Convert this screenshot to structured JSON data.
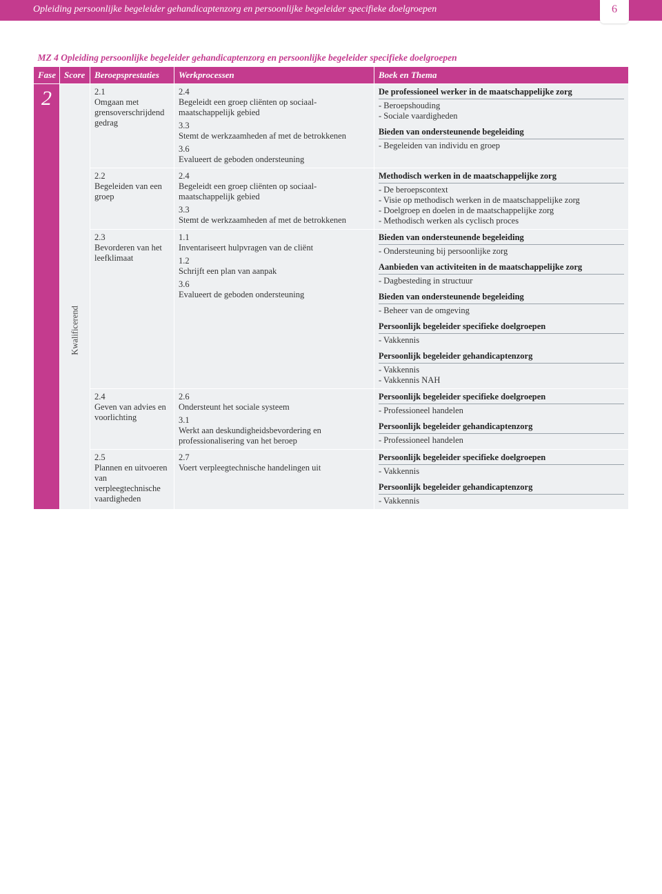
{
  "colors": {
    "brand": "#c43b8e",
    "tint": "#eef0f2",
    "divider": "#9aa3ab",
    "text": "#333333"
  },
  "header": {
    "title": "Opleiding persoonlijke begeleider gehandicaptenzorg en persoonlijke begeleider specifieke doelgroepen",
    "page_number": "6"
  },
  "table": {
    "title": "MZ 4 Opleiding persoonlijke begeleider gehandicaptenzorg en persoonlijke begeleider specifieke doelgroepen",
    "columns": [
      "Fase",
      "Score",
      "Beroepsprestaties",
      "Werkprocessen",
      "Boek en Thema"
    ],
    "fase": "2",
    "score_label": "Kwalificerend",
    "rows": [
      {
        "bp": {
          "num": "2.1",
          "text": "Omgaan met grensoverschrij­dend gedrag"
        },
        "wp": [
          {
            "num": "2.4",
            "text": "Begeleidt een groep cliënten op sociaal­maatschappelijk gebied"
          },
          {
            "num": "3.3",
            "text": "Stemt de werkzaamheden af met de betrokkenen"
          },
          {
            "num": "3.6",
            "text": "Evalueert de geboden ondersteuning"
          }
        ],
        "bt": [
          {
            "heading": "De professioneel werker in de maatschappelijke zorg",
            "items": [
              "- Beroepshouding",
              "- Sociale vaardigheden"
            ]
          },
          {
            "heading": "Bieden van ondersteunende begeleiding",
            "items": [
              "- Begeleiden van individu en groep"
            ]
          }
        ]
      },
      {
        "bp": {
          "num": "2.2",
          "text": "Begeleiden van een groep"
        },
        "wp": [
          {
            "num": "2.4",
            "text": "Begeleidt een groep cliënten op sociaal­maatschappelijk gebied"
          },
          {
            "num": "3.3",
            "text": "Stemt de werkzaamheden af met de betrokkenen"
          }
        ],
        "bt": [
          {
            "heading": "Methodisch werken in de maatschappelijke zorg",
            "items": [
              "- De beroepscontext",
              "- Visie op methodisch werken in de maatschappelijke zorg",
              "- Doelgroep en doelen in de maatschappelijke zorg",
              "- Methodisch werken als cyclisch proces"
            ]
          }
        ]
      },
      {
        "bp": {
          "num": "2.3",
          "text": "Bevorderen van het leefklimaat"
        },
        "wp": [
          {
            "num": "1.1",
            "text": "Inventariseert hulpvragen van de cliënt"
          },
          {
            "num": "1.2",
            "text": "Schrijft een plan van aanpak"
          },
          {
            "num": "3.6",
            "text": "Evalueert de geboden ondersteuning"
          }
        ],
        "bt": [
          {
            "heading": "Bieden van ondersteunende begeleiding",
            "items": [
              "- Ondersteuning bij persoonlijke zorg"
            ]
          },
          {
            "heading": "Aanbieden van activiteiten in de maatschappelijke zorg",
            "items": [
              "- Dagbesteding in structuur"
            ]
          },
          {
            "heading": "Bieden van ondersteunende begeleiding",
            "items": [
              "- Beheer van de omgeving"
            ]
          },
          {
            "heading": "Persoonlijk begeleider specifieke doelgroepen",
            "items": [
              "- Vakkennis"
            ]
          },
          {
            "heading": "Persoonlijk begeleider gehandicaptenzorg",
            "items": [
              "- Vakkennis",
              "- Vakkennis NAH"
            ]
          }
        ]
      },
      {
        "bp": {
          "num": "2.4",
          "text": "Geven van advies en voorlichting"
        },
        "wp": [
          {
            "num": "2.6",
            "text": "Ondersteunt het sociale systeem"
          },
          {
            "num": "3.1",
            "text": "Werkt aan deskundigheidsbevordering en professionalisering van het beroep"
          }
        ],
        "bt": [
          {
            "heading": "Persoonlijk begeleider specifieke doelgroepen",
            "items": [
              "- Professioneel handelen"
            ]
          },
          {
            "heading": "Persoonlijk begeleider gehandicaptenzorg",
            "items": [
              "- Professioneel handelen"
            ]
          }
        ]
      },
      {
        "bp": {
          "num": "2.5",
          "text": "Plannen en uitvoeren van verpleegtechnische vaardigheden"
        },
        "wp": [
          {
            "num": "2.7",
            "text": "Voert verpleegtechnische handelingen uit"
          }
        ],
        "bt": [
          {
            "heading": "Persoonlijk begeleider specifieke doelgroepen",
            "items": [
              "- Vakkennis"
            ]
          },
          {
            "heading": "Persoonlijk begeleider gehandicaptenzorg",
            "items": [
              "- Vakkennis"
            ]
          }
        ]
      }
    ]
  }
}
